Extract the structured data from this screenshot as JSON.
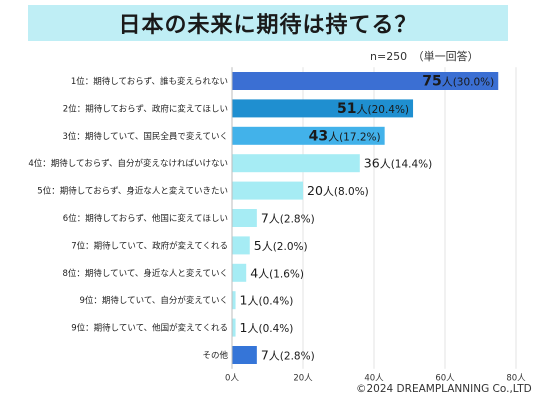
{
  "title": "日本の未来に期待は持てる？",
  "sample_note": "n=250　（単一回答）",
  "copyright": "©2024 DREAMPLANNING Co.,LTD",
  "chart_data": {
    "type": "bar",
    "orientation": "horizontal",
    "categories": [
      "1位：期待しておらず、誰も変えられない",
      "2位：期待しておらず、政府に変えてほしい",
      "3位：期待していて、国民全員で変えていく",
      "4位：期待しておらず、自分が変えなければいけない",
      "5位：期待しておらず、身近な人と変えていきたい",
      "6位：期待しておらず、他国に変えてほしい",
      "7位：期待していて、政府が変えてくれる",
      "8位：期待していて、身近な人と変えていく",
      "9位：期待していて、自分が変えていく",
      "9位：期待していて、他国が変えてくれる",
      "その他"
    ],
    "values": [
      75,
      51,
      43,
      36,
      20,
      7,
      5,
      4,
      1,
      1,
      7
    ],
    "value_labels": [
      "75",
      "51",
      "43",
      "36",
      "20",
      "7",
      "5",
      "4",
      "1",
      "1",
      "7"
    ],
    "unit_label": "人",
    "percent_labels": [
      "(30.0%)",
      "(20.4%)",
      "(17.2%)",
      "(14.4%)",
      "(8.0%)",
      "(2.8%)",
      "(2.0%)",
      "(1.6%)",
      "(0.4%)",
      "(0.4%)",
      "(2.8%)"
    ],
    "colors": [
      "#3b6fd3",
      "#1f8fd0",
      "#42b2ea",
      "#a6ecf4",
      "#a6ecf4",
      "#a6ecf4",
      "#a6ecf4",
      "#a6ecf4",
      "#a6ecf4",
      "#a6ecf4",
      "#3575d8"
    ],
    "label_inside": [
      true,
      true,
      true,
      false,
      false,
      false,
      false,
      false,
      false,
      false,
      false
    ],
    "x_ticks": [
      0,
      20,
      40,
      60,
      80
    ],
    "x_tick_labels": [
      "0人",
      "20人",
      "40人",
      "60人",
      "80人"
    ],
    "xlim": [
      0,
      80
    ],
    "grid": true,
    "title": "",
    "xlabel": "",
    "ylabel": ""
  }
}
